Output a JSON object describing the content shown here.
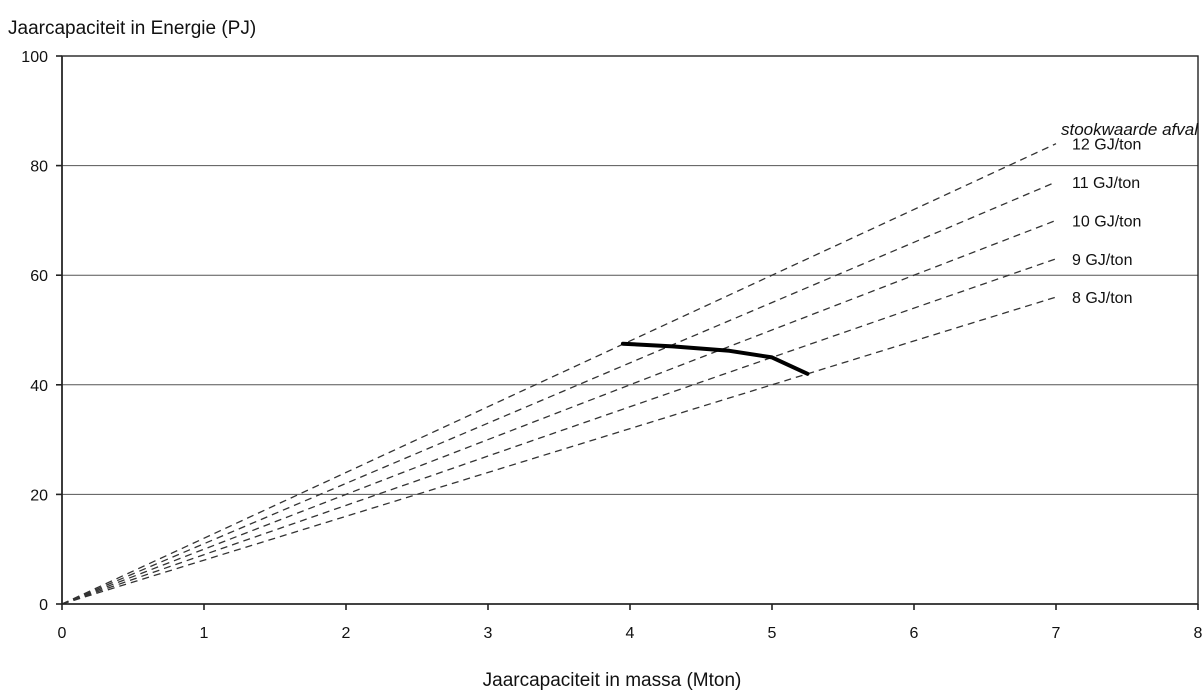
{
  "chart_data": {
    "type": "line",
    "ylabel": "Jaarcapaciteit in Energie (PJ)",
    "xlabel": "Jaarcapaciteit in massa (Mton)",
    "xlim": [
      0,
      8
    ],
    "ylim": [
      0,
      100
    ],
    "xticks": [
      "0",
      "1",
      "2",
      "3",
      "4",
      "5",
      "6",
      "7",
      "8"
    ],
    "yticks": [
      "0",
      "20",
      "40",
      "60",
      "80",
      "100"
    ],
    "grid": "horizontal",
    "legend_title": "stookwaarde afval",
    "legend_position": "right",
    "series": [
      {
        "name": "12 GJ/ton",
        "style": "dashed",
        "x": [
          0,
          7
        ],
        "y": [
          0,
          84
        ]
      },
      {
        "name": "11 GJ/ton",
        "style": "dashed",
        "x": [
          0,
          7
        ],
        "y": [
          0,
          77
        ]
      },
      {
        "name": "10 GJ/ton",
        "style": "dashed",
        "x": [
          0,
          7
        ],
        "y": [
          0,
          70
        ]
      },
      {
        "name": "9 GJ/ton",
        "style": "dashed",
        "x": [
          0,
          7
        ],
        "y": [
          0,
          63
        ]
      },
      {
        "name": "8 GJ/ton",
        "style": "dashed",
        "x": [
          0,
          7
        ],
        "y": [
          0,
          56
        ]
      },
      {
        "style": "solid",
        "x": [
          3.95,
          4.3,
          4.7,
          5.0,
          5.25
        ],
        "y": [
          47.5,
          47.0,
          46.2,
          45.0,
          42.0
        ]
      }
    ]
  }
}
